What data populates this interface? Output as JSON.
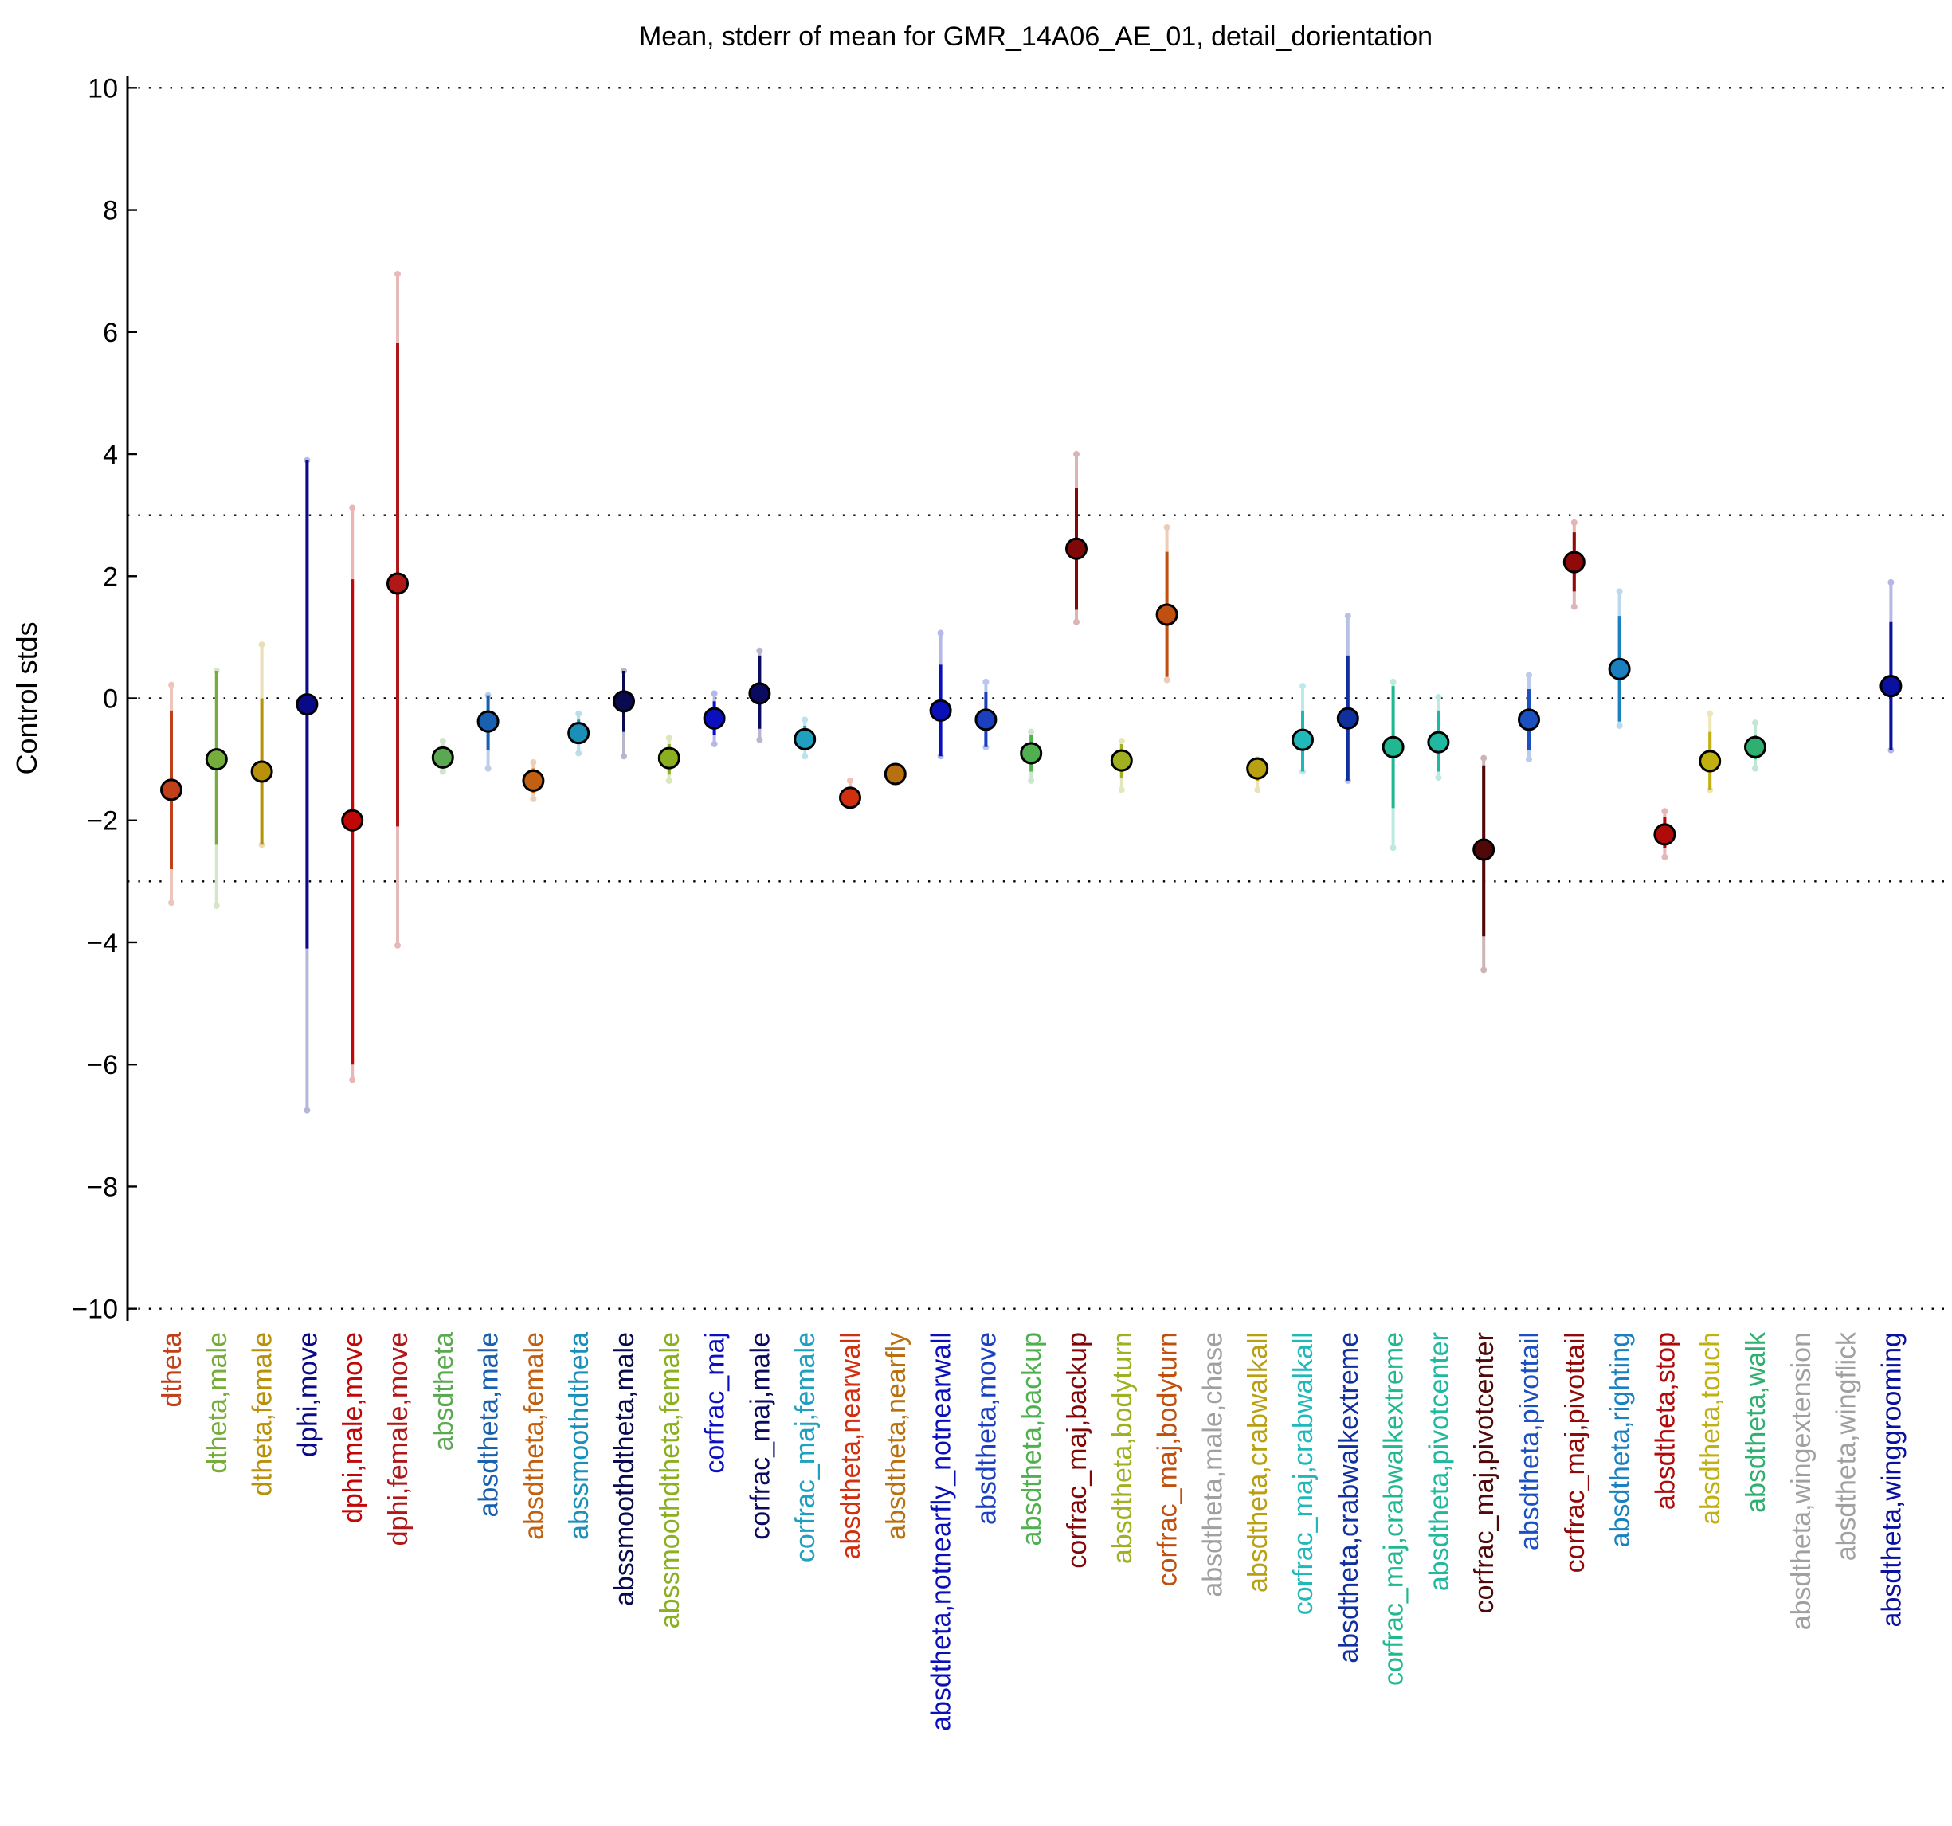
{
  "chart_data": {
    "type": "scatter",
    "title": "Mean, stderr of mean for GMR_14A06_AE_01, detail_dorientation",
    "xlabel": "",
    "ylabel": "Control stds",
    "ylim": [
      -10.2,
      10.2
    ],
    "yticks": [
      -10,
      -8,
      -6,
      -4,
      -2,
      0,
      2,
      4,
      6,
      8,
      10
    ],
    "ytick_labels": [
      "−10",
      "−8",
      "−6",
      "−4",
      "−2",
      "0",
      "2",
      "4",
      "6",
      "8",
      "10"
    ],
    "reference_lines": [
      -10,
      -3,
      0,
      3,
      10
    ],
    "grid": false,
    "legend": "none",
    "points": [
      {
        "label": "dtheta",
        "color": "#c0401a",
        "mean": -1.5,
        "se_low": -2.8,
        "se_high": -0.2,
        "range_low": -3.35,
        "range_high": 0.22
      },
      {
        "label": "dtheta,male",
        "color": "#76ac3c",
        "mean": -1.0,
        "se_low": -2.4,
        "se_high": 0.45,
        "range_low": -3.4,
        "range_high": 0.45
      },
      {
        "label": "dtheta,female",
        "color": "#b8900a",
        "mean": -1.2,
        "se_low": -2.4,
        "se_high": 0.0,
        "range_low": -2.4,
        "range_high": 0.88
      },
      {
        "label": "dphi,move",
        "color": "#0a0a88",
        "mean": -0.1,
        "se_low": -4.1,
        "se_high": 3.9,
        "range_low": -6.75,
        "range_high": 3.9
      },
      {
        "label": "dphi,male,move",
        "color": "#c00808",
        "mean": -2.0,
        "se_low": -6.0,
        "se_high": 1.95,
        "range_low": -6.25,
        "range_high": 3.12
      },
      {
        "label": "dphi,female,move",
        "color": "#b01818",
        "mean": 1.88,
        "se_low": -2.1,
        "se_high": 5.82,
        "range_low": -4.05,
        "range_high": 6.95
      },
      {
        "label": "absdtheta",
        "color": "#5aa850",
        "mean": -0.97,
        "se_low": -1.1,
        "se_high": -0.8,
        "range_low": -1.2,
        "range_high": -0.7
      },
      {
        "label": "absdtheta,male",
        "color": "#1a60b0",
        "mean": -0.38,
        "se_low": -0.85,
        "se_high": 0.05,
        "range_low": -1.15,
        "range_high": 0.05
      },
      {
        "label": "absdtheta,female",
        "color": "#c06010",
        "mean": -1.35,
        "se_low": -1.55,
        "se_high": -1.15,
        "range_low": -1.65,
        "range_high": -1.05
      },
      {
        "label": "abssmoothdtheta",
        "color": "#1a90b8",
        "mean": -0.57,
        "se_low": -0.75,
        "se_high": -0.35,
        "range_low": -0.9,
        "range_high": -0.25
      },
      {
        "label": "abssmoothdtheta,male",
        "color": "#0a0a50",
        "mean": -0.05,
        "se_low": -0.55,
        "se_high": 0.45,
        "range_low": -0.95,
        "range_high": 0.45
      },
      {
        "label": "abssmoothdtheta,female",
        "color": "#8ab020",
        "mean": -0.98,
        "se_low": -1.25,
        "se_high": -0.75,
        "range_low": -1.35,
        "range_high": -0.65
      },
      {
        "label": "corfrac_maj",
        "color": "#0a10c0",
        "mean": -0.33,
        "se_low": -0.6,
        "se_high": -0.05,
        "range_low": -0.75,
        "range_high": 0.08
      },
      {
        "label": "corfrac_maj,male",
        "color": "#0a0a60",
        "mean": 0.08,
        "se_low": -0.5,
        "se_high": 0.7,
        "range_low": -0.68,
        "range_high": 0.78
      },
      {
        "label": "corfrac_maj,female",
        "color": "#20a0c0",
        "mean": -0.67,
        "se_low": -0.85,
        "se_high": -0.45,
        "range_low": -0.95,
        "range_high": -0.35
      },
      {
        "label": "absdtheta,nearwall",
        "color": "#d03010",
        "mean": -1.63,
        "se_low": -1.75,
        "se_high": -1.45,
        "range_low": -1.75,
        "range_high": -1.35
      },
      {
        "label": "absdtheta,nearfly",
        "color": "#b87010",
        "mean": -1.24,
        "se_low": -1.3,
        "se_high": -1.18,
        "range_low": -1.3,
        "range_high": -1.18
      },
      {
        "label": "absdtheta,notnearfly_notnearwall",
        "color": "#0a10b8",
        "mean": -0.2,
        "se_low": -0.95,
        "se_high": 0.55,
        "range_low": -0.95,
        "range_high": 1.07
      },
      {
        "label": "absdtheta,move",
        "color": "#1a40c0",
        "mean": -0.35,
        "se_low": -0.8,
        "se_high": 0.1,
        "range_low": -0.8,
        "range_high": 0.27
      },
      {
        "label": "absdtheta,backup",
        "color": "#50b050",
        "mean": -0.9,
        "se_low": -1.2,
        "se_high": -0.6,
        "range_low": -1.35,
        "range_high": -0.55
      },
      {
        "label": "corfrac_maj,backup",
        "color": "#800808",
        "mean": 2.45,
        "se_low": 1.45,
        "se_high": 3.45,
        "range_low": 1.25,
        "range_high": 4.0
      },
      {
        "label": "absdtheta,bodyturn",
        "color": "#a0b020",
        "mean": -1.02,
        "se_low": -1.3,
        "se_high": -0.75,
        "range_low": -1.5,
        "range_high": -0.7
      },
      {
        "label": "corfrac_maj,bodyturn",
        "color": "#c05010",
        "mean": 1.37,
        "se_low": 0.35,
        "se_high": 2.4,
        "range_low": 0.3,
        "range_high": 2.8
      },
      {
        "label": "absdtheta,male,chase",
        "color": "#a0a0a0",
        "mean": null,
        "se_low": null,
        "se_high": null,
        "range_low": null,
        "range_high": null
      },
      {
        "label": "absdtheta,crabwalkall",
        "color": "#b8a010",
        "mean": -1.15,
        "se_low": -1.35,
        "se_high": -1.0,
        "range_low": -1.5,
        "range_high": -1.0
      },
      {
        "label": "corfrac_maj,crabwalkall",
        "color": "#20b8b8",
        "mean": -0.68,
        "se_low": -1.2,
        "se_high": -0.2,
        "range_low": -1.2,
        "range_high": 0.2
      },
      {
        "label": "absdtheta,crabwalkextreme",
        "color": "#1030a0",
        "mean": -0.33,
        "se_low": -1.35,
        "se_high": 0.7,
        "range_low": -1.35,
        "range_high": 1.35
      },
      {
        "label": "corfrac_maj,crabwalkextreme",
        "color": "#20b890",
        "mean": -0.8,
        "se_low": -1.8,
        "se_high": 0.2,
        "range_low": -2.45,
        "range_high": 0.27
      },
      {
        "label": "absdtheta,pivotcenter",
        "color": "#20b8a0",
        "mean": -0.72,
        "se_low": -1.2,
        "se_high": -0.2,
        "range_low": -1.3,
        "range_high": 0.02
      },
      {
        "label": "corfrac_maj,pivotcenter",
        "color": "#500808",
        "mean": -2.48,
        "se_low": -3.9,
        "se_high": -1.1,
        "range_low": -4.45,
        "range_high": -0.98
      },
      {
        "label": "absdtheta,pivottail",
        "color": "#1a50c0",
        "mean": -0.35,
        "se_low": -0.85,
        "se_high": 0.15,
        "range_low": -1.0,
        "range_high": 0.38
      },
      {
        "label": "corfrac_maj,pivottail",
        "color": "#900a0a",
        "mean": 2.23,
        "se_low": 1.75,
        "se_high": 2.72,
        "range_low": 1.5,
        "range_high": 2.88
      },
      {
        "label": "absdtheta,righting",
        "color": "#1a80c0",
        "mean": 0.48,
        "se_low": -0.38,
        "se_high": 1.35,
        "range_low": -0.45,
        "range_high": 1.75
      },
      {
        "label": "absdtheta,stop",
        "color": "#b00a0a",
        "mean": -2.23,
        "se_low": -2.45,
        "se_high": -1.95,
        "range_low": -2.6,
        "range_high": -1.85
      },
      {
        "label": "absdtheta,touch",
        "color": "#c0b010",
        "mean": -1.03,
        "se_low": -1.5,
        "se_high": -0.55,
        "range_low": -1.5,
        "range_high": -0.25
      },
      {
        "label": "absdtheta,walk",
        "color": "#30b070",
        "mean": -0.8,
        "se_low": -1.0,
        "se_high": -0.6,
        "range_low": -1.15,
        "range_high": -0.4
      },
      {
        "label": "absdtheta,wingextension",
        "color": "#a0a0a0",
        "mean": null,
        "se_low": null,
        "se_high": null,
        "range_low": null,
        "range_high": null
      },
      {
        "label": "absdtheta,wingflick",
        "color": "#a0a0a0",
        "mean": null,
        "se_low": null,
        "se_high": null,
        "range_low": null,
        "range_high": null
      },
      {
        "label": "absdtheta,winggrooming",
        "color": "#0a10a0",
        "mean": 0.2,
        "se_low": -0.85,
        "se_high": 1.25,
        "range_low": -0.85,
        "range_high": 1.9
      }
    ]
  }
}
